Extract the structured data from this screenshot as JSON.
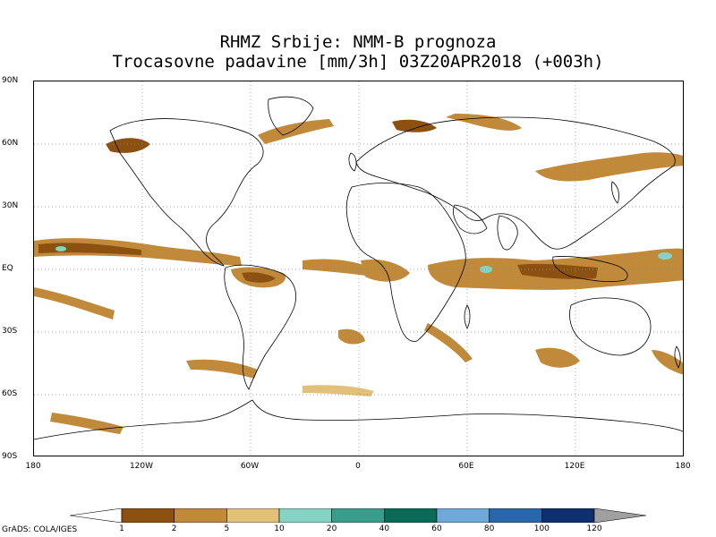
{
  "title": {
    "line1": "RHMZ Srbije: NMM-B prognoza",
    "line2": "Trocasovne padavine [mm/3h] 03Z20APR2018 (+003h)"
  },
  "map": {
    "lat_labels": [
      "90N",
      "60N",
      "30N",
      "EQ",
      "30S",
      "60S",
      "90S"
    ],
    "lon_labels": [
      "180",
      "120W",
      "60W",
      "0",
      "60E",
      "120E",
      "180"
    ],
    "extent": {
      "lon": [
        -180,
        180
      ],
      "lat": [
        -90,
        90
      ]
    },
    "grid": "dotted"
  },
  "colorbar": {
    "labels": [
      "1",
      "2",
      "5",
      "10",
      "20",
      "40",
      "60",
      "80",
      "100",
      "120"
    ],
    "colors": [
      "#ffffff",
      "#8c5010",
      "#c08a3a",
      "#e2c07a",
      "#86d3c4",
      "#3a9d8c",
      "#0a6a58",
      "#6fa8d8",
      "#2a66aa",
      "#0f2f6e",
      "#a0a0a0"
    ]
  },
  "credit": "GrADS: COLA/IGES"
}
